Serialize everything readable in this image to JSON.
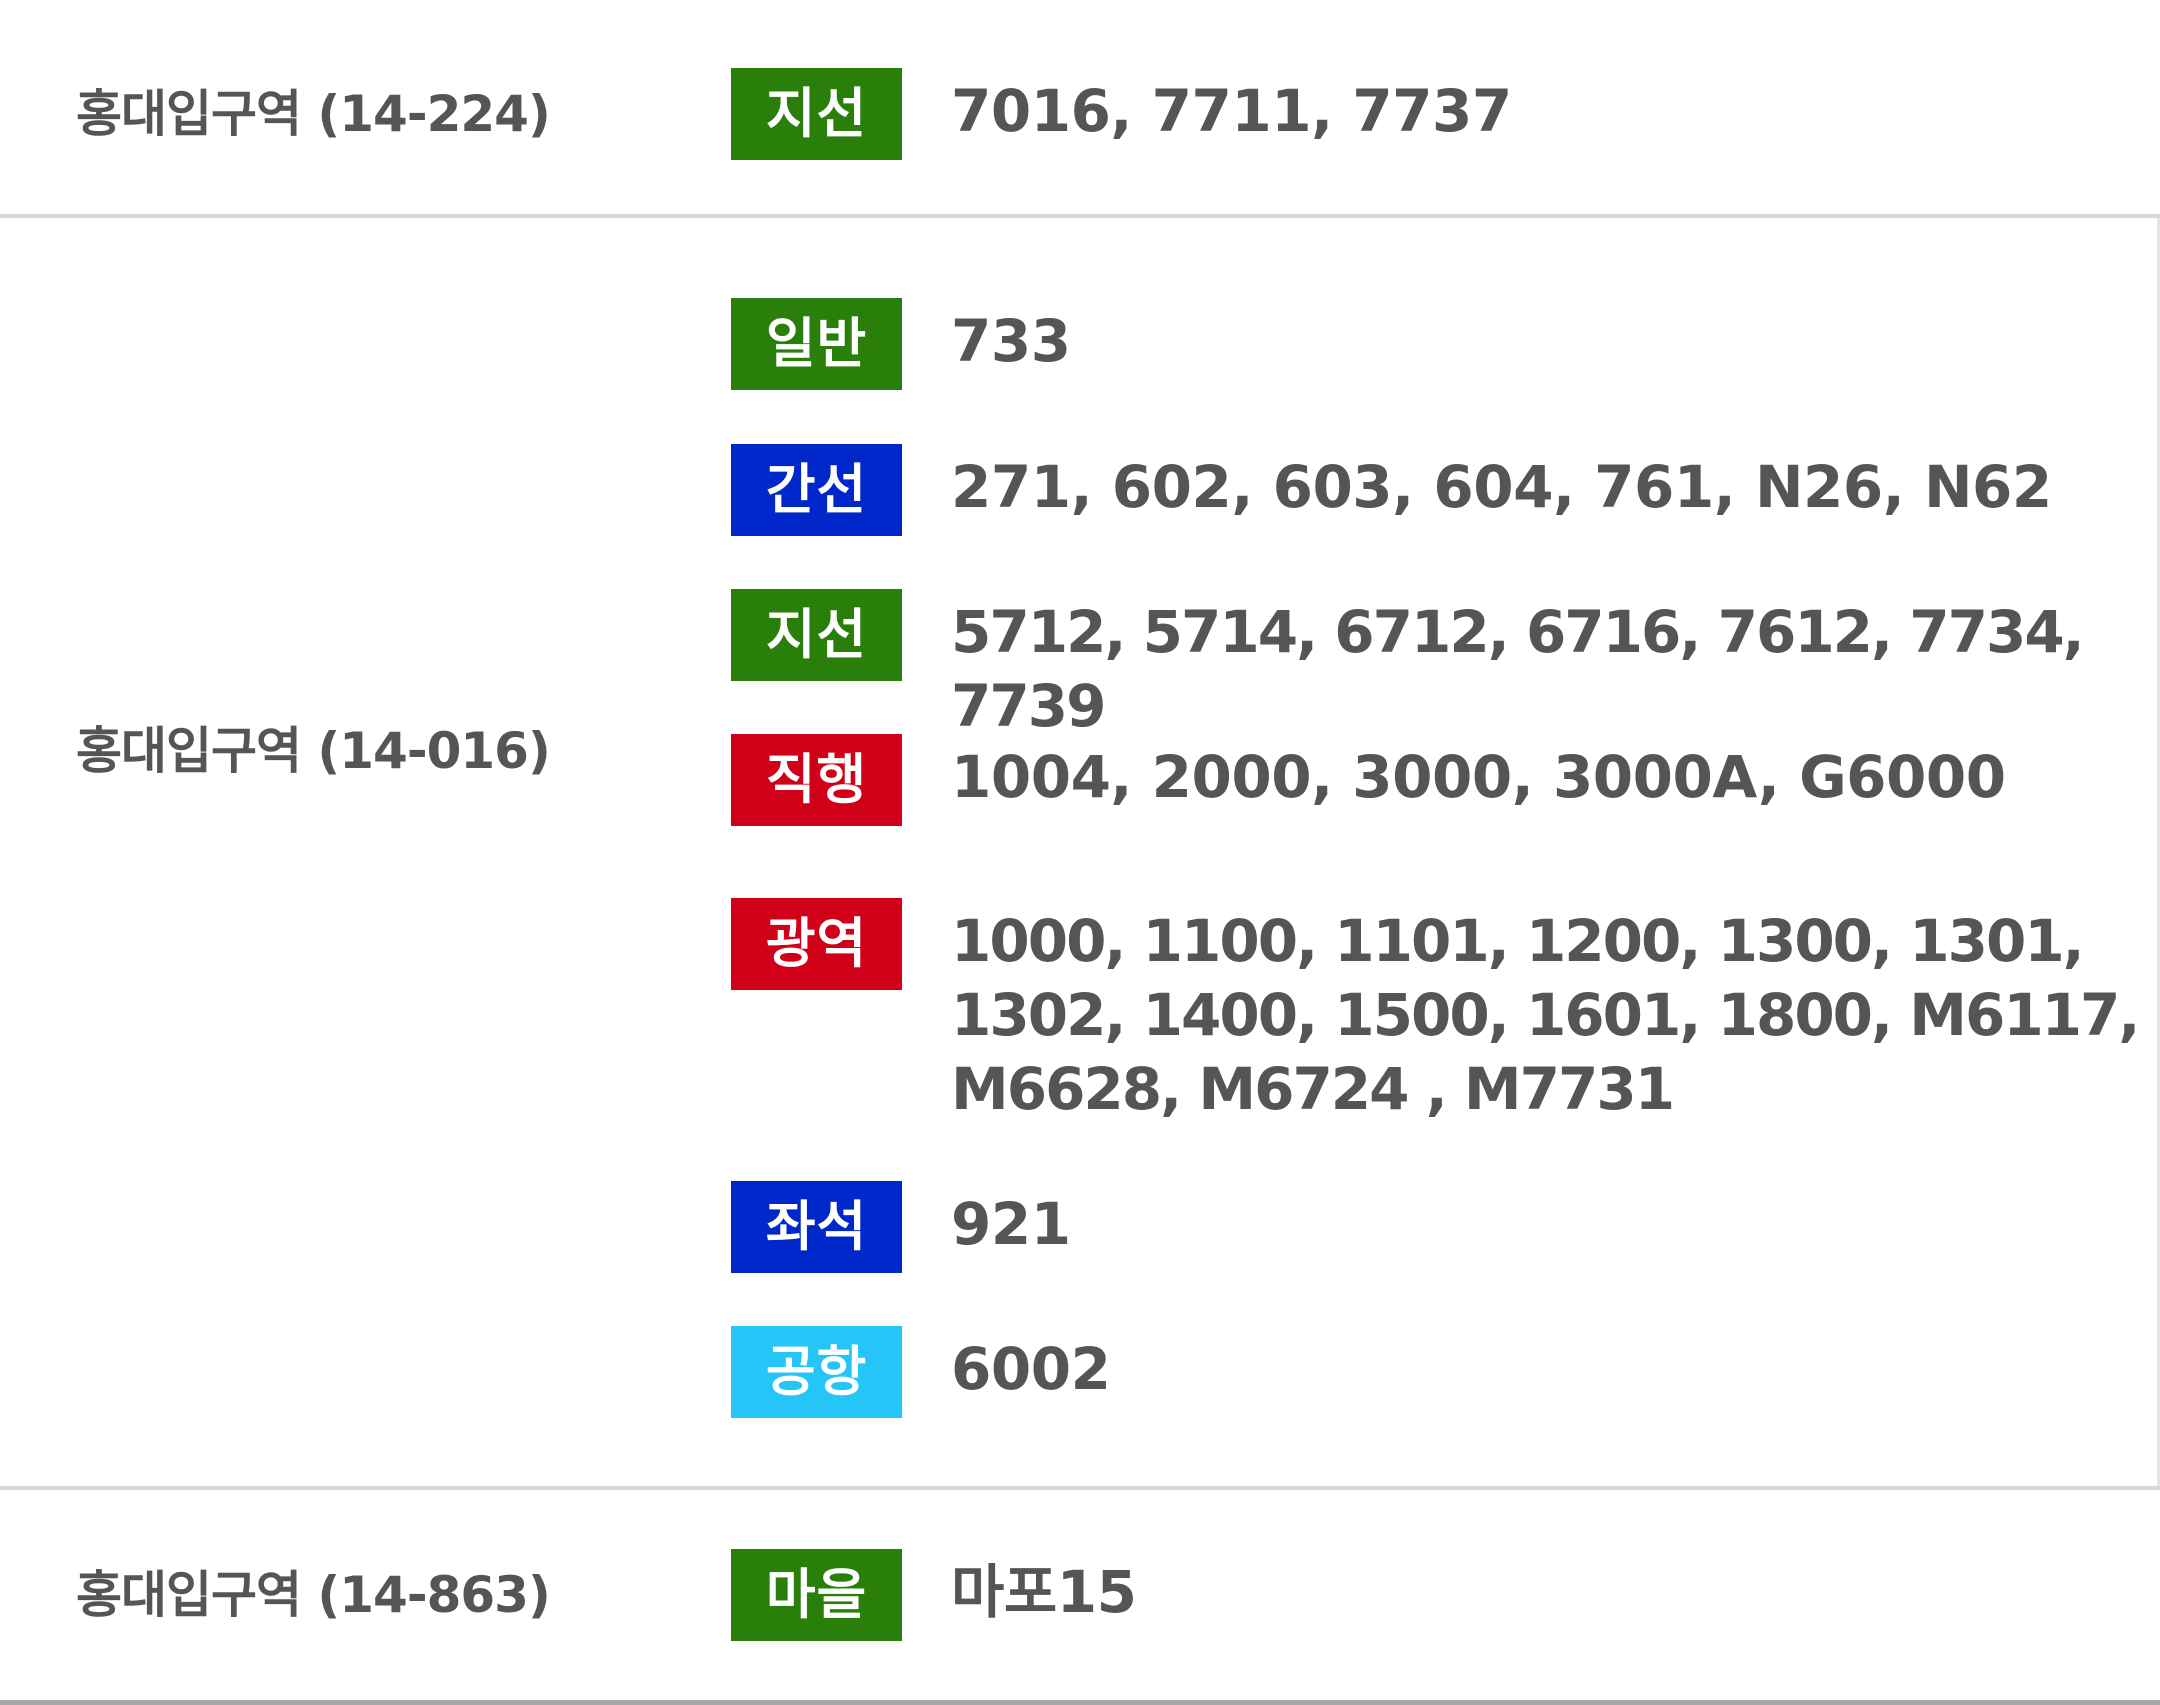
{
  "colors": {
    "green": "#2a7f0b",
    "blue": "#0027c9",
    "red": "#d00018",
    "sky": "#25c6f7",
    "text": "#555555",
    "divider": "#d8d8d8"
  },
  "stops": [
    {
      "station": "홍대입구역 (14-224)",
      "lines": [
        {
          "type": "지선",
          "color": "green",
          "routes": "7016, 7711, 7737"
        }
      ]
    },
    {
      "station": "홍대입구역 (14-016)",
      "lines": [
        {
          "type": "일반",
          "color": "green",
          "routes": "733"
        },
        {
          "type": "간선",
          "color": "blue",
          "routes": "271, 602, 603, 604, 761, N26, N62"
        },
        {
          "type": "지선",
          "color": "green",
          "routes": "5712, 5714, 6712, 6716, 7612, 7734, 7739"
        },
        {
          "type": "직행",
          "color": "red",
          "routes": "1004, 2000, 3000, 3000A, G6000"
        },
        {
          "type": "광역",
          "color": "red",
          "routes": "1000, 1100, 1101, 1200, 1300, 1301, 1302, 1400, 1500, 1601, 1800, M6117, M6628, M6724 , M7731"
        },
        {
          "type": "좌석",
          "color": "blue",
          "routes": "921"
        },
        {
          "type": "공항",
          "color": "sky",
          "routes": "6002"
        }
      ]
    },
    {
      "station": "홍대입구역 (14-863)",
      "lines": [
        {
          "type": "마을",
          "color": "green",
          "routes": "마포15"
        }
      ]
    }
  ]
}
